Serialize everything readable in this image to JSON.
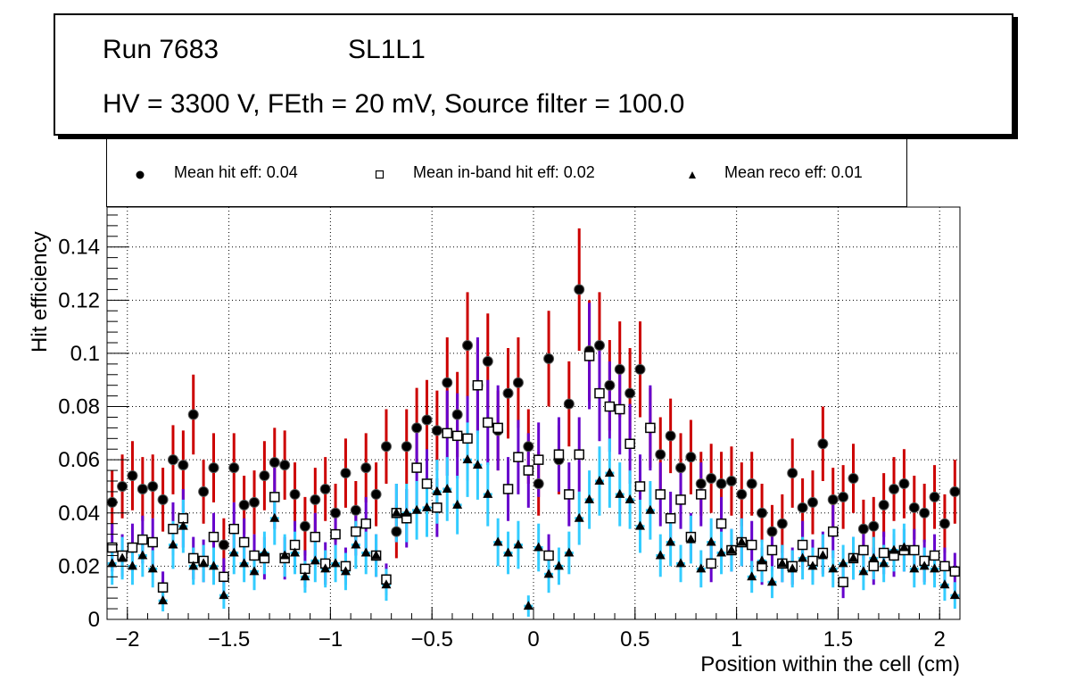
{
  "title": {
    "run": "Run 7683",
    "layer": "SL1L1",
    "conditions": "HV = 3300 V, FEth = 20 mV, Source filter = 100.0"
  },
  "legend": [
    {
      "marker": "filled-circle",
      "label": "Mean hit  eff: 0.04"
    },
    {
      "marker": "open-square",
      "label": "Mean in-band hit eff: 0.02"
    },
    {
      "marker": "filled-triangle",
      "label": "Mean reco eff: 0.01"
    }
  ],
  "colors": {
    "hit_error": "#cc0000",
    "inband_error": "#6600cc",
    "reco_error": "#33ccff",
    "grid": "#000000"
  },
  "chart_data": {
    "type": "scatter",
    "title": "",
    "xlabel": "Position within the cell (cm)",
    "ylabel": "Hit efficiency",
    "xlim": [
      -2.1,
      2.1
    ],
    "ylim": [
      0,
      0.155
    ],
    "grid": true,
    "legend_position": "top",
    "x_ticks": [
      -2,
      -1.5,
      -1,
      -0.5,
      0,
      0.5,
      1,
      1.5,
      2
    ],
    "x_tick_labels": [
      "−2",
      "−1.5",
      "−1",
      "−0.5",
      "0",
      "0.5",
      "1",
      "1.5",
      "2"
    ],
    "y_ticks": [
      0,
      0.02,
      0.04,
      0.06,
      0.08,
      0.1,
      0.12,
      0.14
    ],
    "y_tick_labels": [
      "0",
      "0.02",
      "0.04",
      "0.06",
      "0.08",
      "0.1",
      "0.12",
      "0.14"
    ],
    "bin_width": 0.05,
    "x": [
      -2.075,
      -2.025,
      -1.975,
      -1.925,
      -1.875,
      -1.825,
      -1.775,
      -1.725,
      -1.675,
      -1.625,
      -1.575,
      -1.525,
      -1.475,
      -1.425,
      -1.375,
      -1.325,
      -1.275,
      -1.225,
      -1.175,
      -1.125,
      -1.075,
      -1.025,
      -0.975,
      -0.925,
      -0.875,
      -0.825,
      -0.775,
      -0.725,
      -0.675,
      -0.625,
      -0.575,
      -0.525,
      -0.475,
      -0.425,
      -0.375,
      -0.325,
      -0.275,
      -0.225,
      -0.175,
      -0.125,
      -0.075,
      -0.025,
      0.025,
      0.075,
      0.125,
      0.175,
      0.225,
      0.275,
      0.325,
      0.375,
      0.425,
      0.475,
      0.525,
      0.575,
      0.625,
      0.675,
      0.725,
      0.775,
      0.825,
      0.875,
      0.925,
      0.975,
      1.025,
      1.075,
      1.125,
      1.175,
      1.225,
      1.275,
      1.325,
      1.375,
      1.425,
      1.475,
      1.525,
      1.575,
      1.625,
      1.675,
      1.725,
      1.775,
      1.825,
      1.875,
      1.925,
      1.975,
      2.025,
      2.075
    ],
    "series": [
      {
        "name": "Mean hit  eff: 0.04",
        "marker": "filled-circle",
        "values": [
          0.044,
          0.05,
          0.054,
          0.049,
          0.05,
          0.045,
          0.06,
          0.058,
          0.077,
          0.048,
          0.057,
          0.028,
          0.057,
          0.043,
          0.044,
          0.054,
          0.059,
          0.058,
          0.047,
          0.035,
          0.045,
          0.049,
          0.04,
          0.055,
          0.041,
          0.057,
          0.047,
          0.065,
          0.033,
          0.065,
          0.072,
          0.075,
          0.071,
          0.089,
          0.077,
          0.103,
          0.088,
          0.097,
          0.071,
          0.085,
          0.089,
          0.065,
          0.051,
          0.098,
          0.06,
          0.081,
          0.124,
          0.101,
          0.103,
          0.088,
          0.094,
          0.085,
          0.094,
          0.072,
          0.062,
          0.069,
          0.057,
          0.061,
          0.051,
          0.053,
          0.051,
          0.052,
          0.047,
          0.051,
          0.04,
          0.033,
          0.036,
          0.055,
          0.042,
          0.044,
          0.066,
          0.045,
          0.046,
          0.053,
          0.034,
          0.035,
          0.043,
          0.049,
          0.051,
          0.042,
          0.04,
          0.046,
          0.036,
          0.048
        ],
        "errors": [
          0.012,
          0.012,
          0.013,
          0.012,
          0.012,
          0.012,
          0.013,
          0.013,
          0.015,
          0.012,
          0.013,
          0.01,
          0.013,
          0.011,
          0.012,
          0.013,
          0.013,
          0.013,
          0.012,
          0.011,
          0.012,
          0.012,
          0.011,
          0.013,
          0.011,
          0.013,
          0.012,
          0.014,
          0.01,
          0.014,
          0.015,
          0.015,
          0.015,
          0.017,
          0.016,
          0.02,
          0.017,
          0.018,
          0.015,
          0.017,
          0.017,
          0.014,
          0.012,
          0.018,
          0.013,
          0.016,
          0.023,
          0.019,
          0.02,
          0.017,
          0.018,
          0.017,
          0.018,
          0.015,
          0.014,
          0.014,
          0.013,
          0.014,
          0.012,
          0.013,
          0.012,
          0.013,
          0.012,
          0.012,
          0.011,
          0.01,
          0.011,
          0.013,
          0.011,
          0.012,
          0.014,
          0.012,
          0.012,
          0.013,
          0.011,
          0.011,
          0.012,
          0.012,
          0.013,
          0.012,
          0.011,
          0.012,
          0.011,
          0.012
        ]
      },
      {
        "name": "Mean in-band hit eff: 0.02",
        "marker": "open-square",
        "values": [
          0.027,
          0.024,
          0.027,
          0.03,
          0.029,
          0.012,
          0.034,
          0.038,
          0.023,
          0.022,
          0.031,
          0.016,
          0.034,
          0.029,
          0.024,
          0.023,
          0.046,
          0.023,
          0.028,
          0.019,
          0.031,
          0.021,
          0.032,
          0.02,
          0.033,
          0.036,
          0.024,
          0.015,
          0.04,
          0.038,
          0.057,
          0.051,
          0.042,
          0.07,
          0.069,
          0.068,
          0.088,
          0.074,
          0.072,
          0.049,
          0.061,
          0.056,
          0.06,
          0.024,
          0.062,
          0.047,
          0.062,
          0.099,
          0.085,
          0.08,
          0.079,
          0.066,
          0.05,
          0.072,
          0.047,
          0.038,
          0.045,
          0.031,
          0.047,
          0.021,
          0.036,
          0.026,
          0.029,
          0.028,
          0.02,
          0.026,
          0.021,
          0.02,
          0.028,
          0.022,
          0.025,
          0.033,
          0.014,
          0.023,
          0.026,
          0.02,
          0.025,
          0.024,
          0.026,
          0.026,
          0.022,
          0.024,
          0.02,
          0.018
        ],
        "errors": [
          0.009,
          0.008,
          0.009,
          0.009,
          0.009,
          0.006,
          0.01,
          0.011,
          0.008,
          0.008,
          0.009,
          0.007,
          0.01,
          0.009,
          0.008,
          0.008,
          0.012,
          0.008,
          0.009,
          0.007,
          0.009,
          0.008,
          0.009,
          0.007,
          0.009,
          0.01,
          0.008,
          0.006,
          0.011,
          0.011,
          0.014,
          0.013,
          0.011,
          0.016,
          0.016,
          0.016,
          0.018,
          0.016,
          0.016,
          0.012,
          0.014,
          0.014,
          0.014,
          0.008,
          0.014,
          0.012,
          0.014,
          0.02,
          0.018,
          0.017,
          0.017,
          0.015,
          0.012,
          0.016,
          0.012,
          0.01,
          0.011,
          0.009,
          0.012,
          0.007,
          0.01,
          0.008,
          0.009,
          0.009,
          0.007,
          0.008,
          0.007,
          0.007,
          0.009,
          0.008,
          0.008,
          0.01,
          0.006,
          0.008,
          0.008,
          0.007,
          0.008,
          0.008,
          0.008,
          0.008,
          0.008,
          0.008,
          0.007,
          0.007
        ]
      },
      {
        "name": "Mean reco eff: 0.01",
        "marker": "filled-triangle",
        "values": [
          0.021,
          0.023,
          0.02,
          0.024,
          0.019,
          0.007,
          0.028,
          0.035,
          0.02,
          0.021,
          0.02,
          0.009,
          0.025,
          0.021,
          0.018,
          0.025,
          0.038,
          0.024,
          0.025,
          0.016,
          0.022,
          0.019,
          0.021,
          0.018,
          0.028,
          0.025,
          0.024,
          0.013,
          0.04,
          0.04,
          0.041,
          0.042,
          0.048,
          0.049,
          0.043,
          0.06,
          0.058,
          0.047,
          0.029,
          0.025,
          0.028,
          0.005,
          0.027,
          0.017,
          0.02,
          0.025,
          0.038,
          0.045,
          0.052,
          0.055,
          0.047,
          0.045,
          0.035,
          0.041,
          0.024,
          0.029,
          0.021,
          0.03,
          0.019,
          0.029,
          0.025,
          0.026,
          0.029,
          0.016,
          0.022,
          0.014,
          0.021,
          0.019,
          0.023,
          0.02,
          0.024,
          0.019,
          0.021,
          0.023,
          0.018,
          0.023,
          0.021,
          0.026,
          0.027,
          0.019,
          0.02,
          0.019,
          0.013,
          0.009
        ],
        "errors": [
          0.008,
          0.008,
          0.007,
          0.008,
          0.007,
          0.004,
          0.009,
          0.01,
          0.007,
          0.007,
          0.007,
          0.005,
          0.008,
          0.007,
          0.007,
          0.008,
          0.01,
          0.008,
          0.008,
          0.006,
          0.008,
          0.007,
          0.007,
          0.007,
          0.009,
          0.008,
          0.008,
          0.006,
          0.011,
          0.011,
          0.011,
          0.011,
          0.012,
          0.012,
          0.011,
          0.014,
          0.013,
          0.012,
          0.009,
          0.008,
          0.009,
          0.004,
          0.009,
          0.007,
          0.007,
          0.008,
          0.01,
          0.011,
          0.013,
          0.013,
          0.012,
          0.011,
          0.01,
          0.011,
          0.008,
          0.009,
          0.007,
          0.009,
          0.007,
          0.009,
          0.008,
          0.008,
          0.009,
          0.006,
          0.008,
          0.006,
          0.007,
          0.007,
          0.008,
          0.007,
          0.008,
          0.007,
          0.007,
          0.008,
          0.007,
          0.008,
          0.007,
          0.008,
          0.009,
          0.007,
          0.007,
          0.007,
          0.006,
          0.005
        ]
      }
    ]
  }
}
